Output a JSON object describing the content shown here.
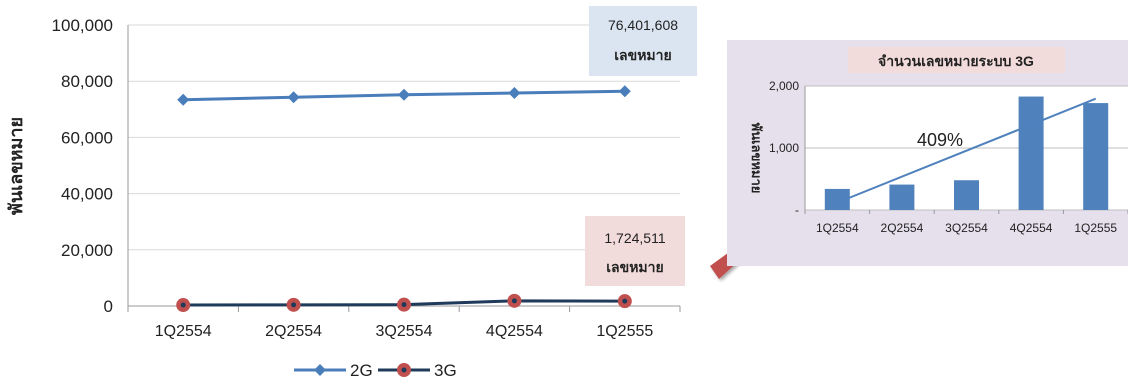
{
  "colors": {
    "series_2g": "#4a7ebb",
    "series_3g_fill": "#c0504d",
    "series_3g_line": "#1f3a5a",
    "callout_2g_bg": "#dbe5f1",
    "callout_3g_bg": "#f2dcdb",
    "inset_bg": "#e6e0ec",
    "inset_title_bg": "#f2dcdb",
    "inset_bar": "#4f81bd",
    "arrow": "#c0504d",
    "grid": "#d9d9d9"
  },
  "main_chart": {
    "ylabel": "พันเลขหมาย",
    "legend_position": "bottom",
    "callout_2g": {
      "value": "76,401,608",
      "unit": "เลขหมาย"
    },
    "callout_3g": {
      "value": "1,724,511",
      "unit": "เลขหมาย"
    }
  },
  "inset_chart": {
    "title": "จำนวนเลขหมายระบบ 3G",
    "ylabel": "พันเลขหมาย",
    "annotation": "409%",
    "y_tick_labels": [
      "-",
      "1,000",
      "2,000"
    ]
  },
  "chart_data": [
    {
      "type": "line",
      "title": "",
      "xlabel": "",
      "ylabel": "พันเลขหมาย",
      "categories": [
        "1Q2554",
        "2Q2554",
        "3Q2554",
        "4Q2554",
        "1Q2555"
      ],
      "ylim": [
        0,
        100000
      ],
      "yticks": [
        0,
        20000,
        40000,
        60000,
        80000,
        100000
      ],
      "grid": true,
      "legend": "bottom",
      "series": [
        {
          "name": "2G",
          "values": [
            73400,
            74300,
            75200,
            75800,
            76401.608
          ],
          "marker": "diamond"
        },
        {
          "name": "3G",
          "values": [
            340,
            410,
            480,
            1830,
            1724.511
          ],
          "marker": "circle"
        }
      ]
    },
    {
      "type": "bar",
      "title": "จำนวนเลขหมายระบบ 3G",
      "xlabel": "",
      "ylabel": "พันเลขหมาย",
      "categories": [
        "1Q2554",
        "2Q2554",
        "3Q2554",
        "4Q2554",
        "1Q2555"
      ],
      "values": [
        340,
        410,
        480,
        1830,
        1724.511
      ],
      "ylim": [
        0,
        2000
      ],
      "yticks": [
        0,
        1000,
        2000
      ],
      "grid": true,
      "trendline": true,
      "annotation": "409%"
    }
  ]
}
